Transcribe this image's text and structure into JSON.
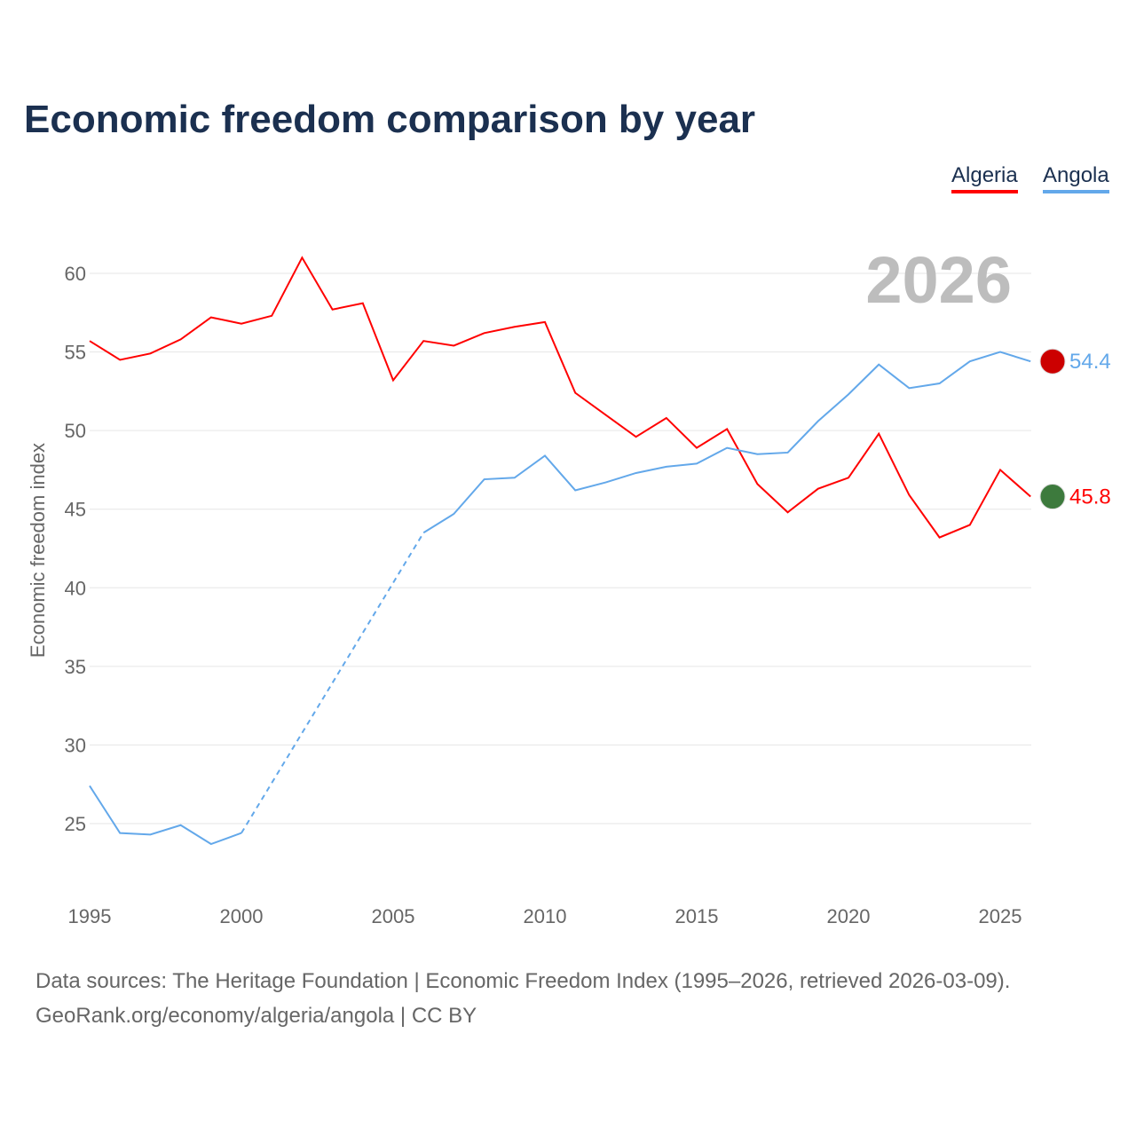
{
  "chart_data": {
    "type": "line",
    "title": "Economic freedom comparison by year",
    "xlabel": "",
    "ylabel": "Economic freedom index",
    "xlim": [
      1995,
      2026
    ],
    "ylim": [
      21,
      63
    ],
    "xticks": [
      1995,
      2000,
      2005,
      2010,
      2015,
      2020,
      2025
    ],
    "yticks": [
      25,
      30,
      35,
      40,
      45,
      50,
      55,
      60
    ],
    "year_label": "2026",
    "legend_position": "top-right",
    "x": [
      1995,
      1996,
      1997,
      1998,
      1999,
      2000,
      2001,
      2002,
      2003,
      2004,
      2005,
      2006,
      2007,
      2008,
      2009,
      2010,
      2011,
      2012,
      2013,
      2014,
      2015,
      2016,
      2017,
      2018,
      2019,
      2020,
      2021,
      2022,
      2023,
      2024,
      2025,
      2026
    ],
    "series": [
      {
        "name": "Algeria",
        "color": "#ff0000",
        "end_label": "45.8",
        "values": [
          55.7,
          54.5,
          54.9,
          55.8,
          57.2,
          56.8,
          57.3,
          61.0,
          57.7,
          58.1,
          53.2,
          55.7,
          55.4,
          56.2,
          56.6,
          56.9,
          52.4,
          51.0,
          49.6,
          50.8,
          48.9,
          50.1,
          46.6,
          44.8,
          46.3,
          47.0,
          49.8,
          45.9,
          43.2,
          44.0,
          47.5,
          45.8
        ]
      },
      {
        "name": "Angola",
        "color": "#63a8ea",
        "end_label": "54.4",
        "values": [
          27.4,
          24.4,
          24.3,
          24.9,
          23.7,
          24.4,
          null,
          null,
          null,
          null,
          null,
          43.5,
          44.7,
          46.9,
          47.0,
          48.4,
          46.2,
          46.7,
          47.3,
          47.7,
          47.9,
          48.9,
          48.5,
          48.6,
          50.6,
          52.3,
          54.2,
          52.7,
          53.0,
          54.4,
          55.0,
          54.4
        ]
      }
    ]
  },
  "source": {
    "line1": "Data sources: The Heritage Foundation | Economic Freedom Index (1995–2026, retrieved 2026-03-09).",
    "line2": "GeoRank.org/economy/algeria/angola | CC BY"
  }
}
